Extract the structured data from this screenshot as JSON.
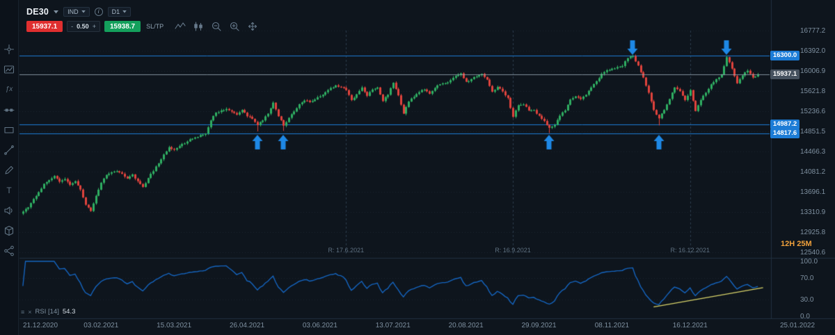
{
  "toolbar": {
    "symbol": "DE30",
    "symbol_type": "IND",
    "timeframe": "D1",
    "sell_price": "15937.1",
    "spread_minus": "-",
    "spread": "0.50",
    "spread_plus": "+",
    "buy_price": "15938.7",
    "sltp_label": "SL/TP",
    "chart_tool_icons": [
      "zigzag",
      "candles",
      "zoom-out",
      "zoom-in",
      "move"
    ]
  },
  "sidebar_tools": [
    "crosshair",
    "chart-image",
    "indicators-fx",
    "horizontal-line",
    "rectangle",
    "trendline",
    "pencil",
    "text",
    "volume",
    "cube",
    "share"
  ],
  "countdown": "12H 25M",
  "colors": {
    "background": "#0e151d",
    "bullish": "#2fae62",
    "bearish": "#e0433d",
    "level_line": "#1c7cd6",
    "arrow": "#1e88e5",
    "rsi_line": "#1565c0",
    "trendline": "#d9d46a",
    "current_price_line": "#9fb0bd",
    "grid": "#1b2633",
    "countdown_color": "#f0a13c"
  },
  "chart_data": {
    "type": "candlestick",
    "symbol": "DE30",
    "timeframe": "D1",
    "legend_note": "RSI [14] sub-pane shown below price pane",
    "price_axis_ticks": [
      16777.2,
      16392.0,
      16006.9,
      15621.8,
      15236.6,
      14851.5,
      14466.3,
      14081.2,
      13696.1,
      13310.9,
      12925.8,
      12540.6
    ],
    "price_range": [
      12475,
      16830
    ],
    "date_ticks": [
      "21.12.2020",
      "03.02.2021",
      "15.03.2021",
      "26.04.2021",
      "03.06.2021",
      "13.07.2021",
      "20.08.2021",
      "29.09.2021",
      "08.11.2021",
      "16.12.2021",
      "25.01.2022"
    ],
    "tick_indices": [
      1,
      15,
      29,
      43,
      57,
      71,
      85,
      99,
      113,
      128,
      142
    ],
    "points_per_close": 2,
    "closes": [
      13320,
      13400,
      13560,
      13690,
      13850,
      13920,
      14000,
      13890,
      13940,
      13830,
      13900,
      13740,
      13450,
      13330,
      13620,
      13870,
      14020,
      14070,
      14090,
      14040,
      13950,
      14030,
      13900,
      13790,
      13960,
      14090,
      14240,
      14410,
      14550,
      14500,
      14570,
      14620,
      14700,
      14735,
      14780,
      14810,
      15060,
      15210,
      15250,
      15280,
      15230,
      15170,
      15260,
      15140,
      15090,
      14970,
      15060,
      15190,
      15400,
      15140,
      14960,
      15110,
      15230,
      15370,
      15440,
      15410,
      15460,
      15520,
      15600,
      15680,
      15730,
      15700,
      15640,
      15450,
      15560,
      15690,
      15530,
      15650,
      15690,
      15430,
      15550,
      15780,
      15540,
      15190,
      15420,
      15510,
      15600,
      15650,
      15570,
      15680,
      15750,
      15770,
      15830,
      15910,
      15960,
      15800,
      15850,
      15900,
      15950,
      15840,
      15610,
      15700,
      15615,
      15490,
      15130,
      15350,
      15365,
      15250,
      15260,
      15150,
      15050,
      14920,
      14975,
      15150,
      15250,
      15460,
      15520,
      15470,
      15550,
      15690,
      15810,
      15950,
      16020,
      16050,
      16080,
      16100,
      16250,
      16290,
      16110,
      15880,
      15590,
      15260,
      15100,
      15260,
      15470,
      15690,
      15620,
      15450,
      15640,
      15240,
      15450,
      15590,
      15750,
      15850,
      15940,
      16270,
      16050,
      15770,
      15920,
      16010,
      15880,
      15937
    ],
    "spike_lows": {
      "45": 14850,
      "50": 14860,
      "101": 14818,
      "122": 14965
    },
    "spike_highs": {
      "117": 16312,
      "135": 16295
    },
    "levels": [
      {
        "price": 16300.0,
        "label": "16300.0"
      },
      {
        "price": 14987.2,
        "label": "14987.2"
      },
      {
        "price": 14817.6,
        "label": "14817.6"
      }
    ],
    "current_price": {
      "price": 15937.1,
      "label": "15937.1"
    },
    "signal_arrows": [
      {
        "dir": "up",
        "index": 45,
        "price": 14790
      },
      {
        "dir": "up",
        "index": 50,
        "price": 14790
      },
      {
        "dir": "up",
        "index": 101,
        "price": 14790
      },
      {
        "dir": "up",
        "index": 122,
        "price": 14790
      },
      {
        "dir": "down",
        "index": 117,
        "price": 16315
      },
      {
        "dir": "down",
        "index": 135,
        "price": 16315
      }
    ],
    "rollover_lines": [
      {
        "index": 62,
        "label": "R: 17.6.2021"
      },
      {
        "index": 94,
        "label": "R: 16.9.2021"
      },
      {
        "index": 128,
        "label": "R: 16.12.2021"
      }
    ],
    "rsi": {
      "legend": "RSI [14]",
      "value": "54.3",
      "period": 14,
      "axis_ticks": [
        100.0,
        70.0,
        30.0,
        0.0
      ],
      "range": [
        0,
        100
      ],
      "bands": [
        70,
        30
      ],
      "trendline": {
        "i1": 121,
        "v1": 17,
        "i2": 142,
        "v2": 52
      }
    }
  }
}
